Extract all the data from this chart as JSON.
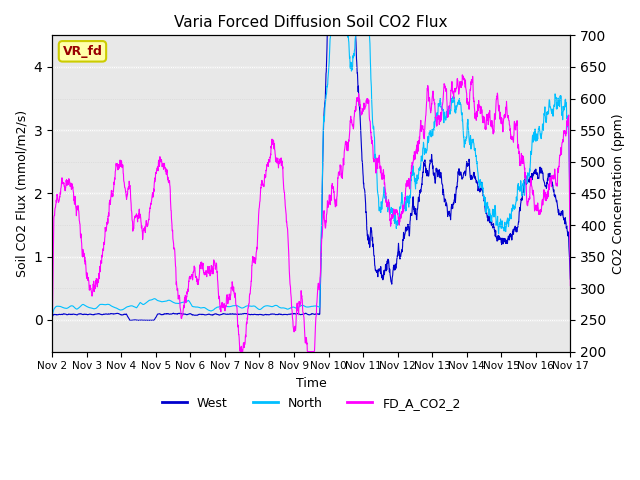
{
  "title": "Varia Forced Diffusion Soil CO2 Flux",
  "xlabel": "Time",
  "ylabel_left": "Soil CO2 Flux (mmol/m2/s)",
  "ylabel_right": "CO2 Concentration (ppm)",
  "ylim_left": [
    -0.5,
    4.5
  ],
  "ylim_right": [
    200,
    700
  ],
  "xtick_labels": [
    "Nov 2",
    "Nov 3",
    "Nov 4",
    "Nov 5",
    "Nov 6",
    "Nov 7",
    "Nov 8",
    "Nov 9",
    "Nov 10",
    "Nov 11",
    "Nov 12",
    "Nov 13",
    "Nov 14",
    "Nov 15",
    "Nov 16",
    "Nov 17"
  ],
  "color_west": "#0000CD",
  "color_north": "#00BFFF",
  "color_co2": "#FF00FF",
  "background_color": "#E8E8E8",
  "grid_color": "#FFFFFF",
  "annotation_text": "VR_fd",
  "annotation_bg": "#FFFFAA",
  "annotation_border": "#CCCC00",
  "annotation_text_color": "#990000",
  "legend_entries": [
    "West",
    "North",
    "FD_A_CO2_2"
  ],
  "seed": 42
}
